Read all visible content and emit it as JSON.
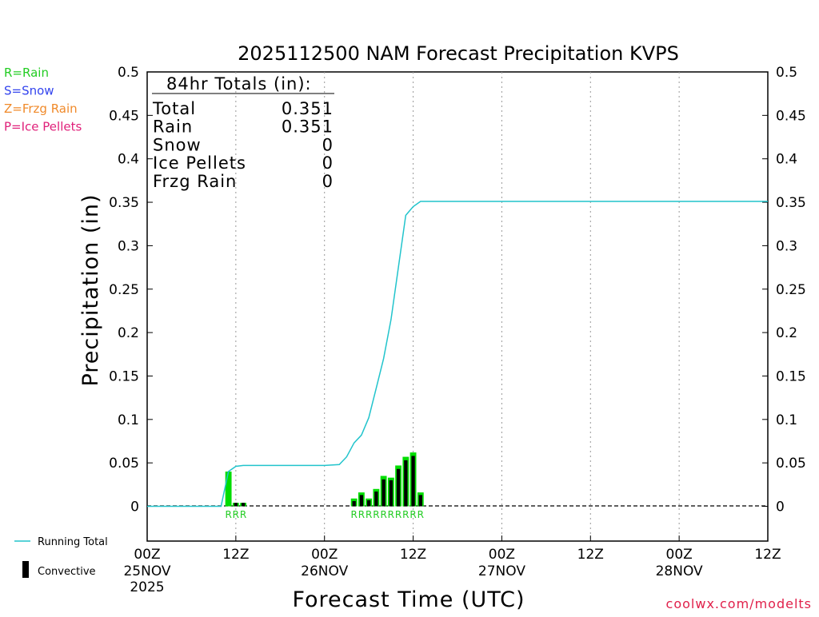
{
  "chart_data": {
    "type": "bar+line",
    "title": "2025112500 NAM Forecast Precipitation KVPS",
    "xlabel": "Forecast Time (UTC)",
    "ylabel": "Precipitation (in)",
    "ylim": [
      -0.04,
      0.5
    ],
    "xlim_hours": [
      0,
      84
    ],
    "yticks": [
      "0.5",
      "0.45",
      "0.4",
      "0.35",
      "0.3",
      "0.25",
      "0.2",
      "0.15",
      "0.1",
      "0.05",
      "0"
    ],
    "ytick_values": [
      0.5,
      0.45,
      0.4,
      0.35,
      0.3,
      0.25,
      0.2,
      0.15,
      0.1,
      0.05,
      0
    ],
    "xticks": [
      {
        "hour": 0,
        "l1": "00Z",
        "l2": "25NOV",
        "l3": "2025"
      },
      {
        "hour": 12,
        "l1": "12Z",
        "l2": "",
        "l3": ""
      },
      {
        "hour": 24,
        "l1": "00Z",
        "l2": "26NOV",
        "l3": ""
      },
      {
        "hour": 36,
        "l1": "12Z",
        "l2": "",
        "l3": ""
      },
      {
        "hour": 48,
        "l1": "00Z",
        "l2": "27NOV",
        "l3": ""
      },
      {
        "hour": 60,
        "l1": "12Z",
        "l2": "",
        "l3": ""
      },
      {
        "hour": 72,
        "l1": "00Z",
        "l2": "28NOV",
        "l3": ""
      },
      {
        "hour": 84,
        "l1": "12Z",
        "l2": "",
        "l3": ""
      }
    ],
    "precip_bars": [
      {
        "hour": 11,
        "total": 0.04,
        "convective": 0.0
      },
      {
        "hour": 12,
        "total": 0.004,
        "convective": 0.004
      },
      {
        "hour": 13,
        "total": 0.004,
        "convective": 0.004
      },
      {
        "hour": 28,
        "total": 0.009,
        "convective": 0.006
      },
      {
        "hour": 29,
        "total": 0.016,
        "convective": 0.013
      },
      {
        "hour": 30,
        "total": 0.009,
        "convective": 0.007
      },
      {
        "hour": 31,
        "total": 0.02,
        "convective": 0.017
      },
      {
        "hour": 32,
        "total": 0.035,
        "convective": 0.031
      },
      {
        "hour": 33,
        "total": 0.033,
        "convective": 0.03
      },
      {
        "hour": 34,
        "total": 0.047,
        "convective": 0.043
      },
      {
        "hour": 35,
        "total": 0.057,
        "convective": 0.053
      },
      {
        "hour": 36,
        "total": 0.062,
        "convective": 0.058
      },
      {
        "hour": 37,
        "total": 0.016,
        "convective": 0.013
      }
    ],
    "running_total": {
      "hours": [
        0,
        10,
        11,
        12,
        13,
        24,
        26,
        27,
        28,
        29,
        30,
        31,
        32,
        33,
        34,
        35,
        36,
        37,
        84
      ],
      "values": [
        0,
        0,
        0.04,
        0.046,
        0.047,
        0.047,
        0.048,
        0.057,
        0.073,
        0.082,
        0.102,
        0.136,
        0.17,
        0.215,
        0.275,
        0.335,
        0.345,
        0.351,
        0.351
      ]
    },
    "type_marks": [
      {
        "hour": 11,
        "label": "R"
      },
      {
        "hour": 12,
        "label": "R"
      },
      {
        "hour": 13,
        "label": "R"
      },
      {
        "hour": 28,
        "label": "R"
      },
      {
        "hour": 29,
        "label": "R"
      },
      {
        "hour": 30,
        "label": "R"
      },
      {
        "hour": 31,
        "label": "R"
      },
      {
        "hour": 32,
        "label": "R"
      },
      {
        "hour": 33,
        "label": "R"
      },
      {
        "hour": 34,
        "label": "R"
      },
      {
        "hour": 35,
        "label": "R"
      },
      {
        "hour": 36,
        "label": "R"
      },
      {
        "hour": 37,
        "label": "R"
      }
    ],
    "totals_box": {
      "header": "84hr Totals (in):",
      "rows": [
        {
          "label": "Total",
          "value": "0.351"
        },
        {
          "label": "Rain",
          "value": "0.351"
        },
        {
          "label": "Snow",
          "value": "0"
        },
        {
          "label": "Ice Pellets",
          "value": "0"
        },
        {
          "label": "Frzg Rain",
          "value": "0"
        }
      ]
    },
    "type_legend": [
      {
        "text": "R=Rain",
        "color": "#22cc22"
      },
      {
        "text": "S=Snow",
        "color": "#3344ee"
      },
      {
        "text": "Z=Frzg Rain",
        "color": "#f08a2a"
      },
      {
        "text": "P=Ice Pellets",
        "color": "#e0207a"
      }
    ],
    "series_legend": {
      "running_total": "Running Total",
      "convective": "Convective"
    },
    "credit": "coolwx.com/modelts"
  },
  "colors": {
    "rain": "#00dd00",
    "convective": "#000000",
    "running_total": "#22c4cc",
    "grid": "#999999"
  }
}
